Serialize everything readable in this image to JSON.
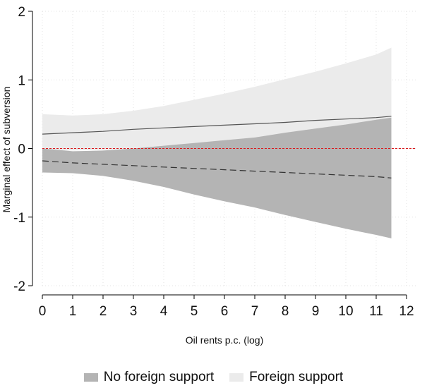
{
  "chart_data": {
    "type": "area",
    "title": "",
    "xlabel": "Oil rents p.c. (log)",
    "ylabel": "Marginal effect of subversion",
    "xlim": [
      0,
      12
    ],
    "ylim": [
      -2,
      2
    ],
    "xticks": [
      0,
      1,
      2,
      3,
      4,
      5,
      6,
      7,
      8,
      9,
      10,
      11,
      12
    ],
    "yticks": [
      -2,
      -1,
      0,
      1,
      2
    ],
    "grid": true,
    "legend_position": "bottom",
    "reference_line": {
      "y": 0,
      "style": "dashed",
      "color": "#d9191c"
    },
    "x": [
      0,
      1,
      2,
      3,
      4,
      5,
      6,
      7,
      8,
      9,
      10,
      11,
      11.5
    ],
    "series": [
      {
        "name": "No foreign support",
        "color": "#b4b4b4",
        "line_style": "dashed",
        "estimate": [
          -0.18,
          -0.21,
          -0.23,
          -0.25,
          -0.27,
          -0.29,
          -0.31,
          -0.33,
          -0.35,
          -0.37,
          -0.39,
          -0.41,
          -0.43
        ],
        "lower": [
          -0.35,
          -0.36,
          -0.4,
          -0.47,
          -0.56,
          -0.67,
          -0.77,
          -0.86,
          -0.97,
          -1.07,
          -1.17,
          -1.26,
          -1.31
        ],
        "upper": [
          0.0,
          -0.04,
          -0.03,
          0.0,
          0.04,
          0.08,
          0.12,
          0.16,
          0.23,
          0.29,
          0.35,
          0.42,
          0.45
        ]
      },
      {
        "name": "Foreign support",
        "color": "#ebebeb",
        "line_style": "solid",
        "estimate": [
          0.21,
          0.23,
          0.25,
          0.28,
          0.3,
          0.32,
          0.34,
          0.36,
          0.38,
          0.41,
          0.43,
          0.45,
          0.47
        ],
        "lower": [
          -0.03,
          -0.03,
          -0.02,
          0.0,
          -0.03,
          -0.07,
          -0.14,
          -0.21,
          -0.27,
          -0.33,
          -0.4,
          -0.45,
          -0.48
        ],
        "upper": [
          0.5,
          0.48,
          0.5,
          0.55,
          0.62,
          0.71,
          0.8,
          0.9,
          1.01,
          1.12,
          1.24,
          1.37,
          1.47
        ]
      }
    ]
  }
}
